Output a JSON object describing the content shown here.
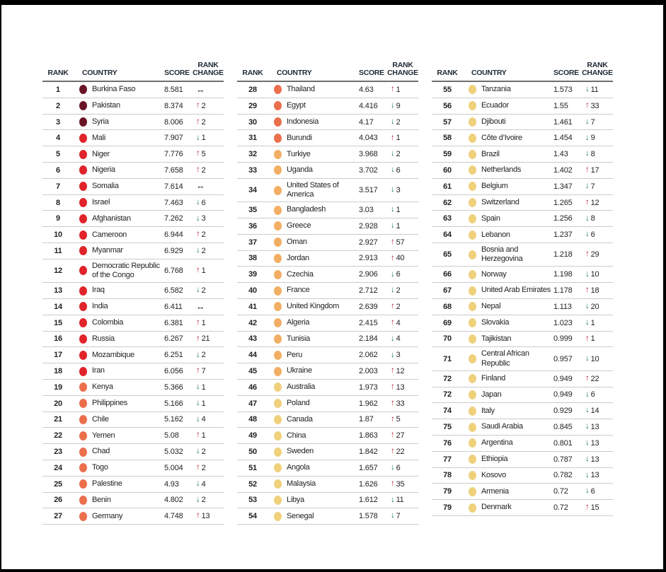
{
  "page": {
    "background": "#ffffff",
    "frame_border": "#000000"
  },
  "colors": {
    "bands": {
      "maroon": "#6b1426",
      "red": "#e1242a",
      "orange": "#ec6f4c",
      "amber": "#f2ae63",
      "yellow": "#efd17c"
    },
    "dirs": {
      "up": "#b8232e",
      "down": "#15786c",
      "same": "#141414"
    },
    "row_line": "#cbcbcb",
    "header_line": "#6e6e6e",
    "text": "#222222",
    "header_text": "#1e2a36"
  },
  "icons": {
    "up": "↑",
    "down": "↓",
    "same": "↔"
  },
  "table": {
    "headers": {
      "rank": "RANK",
      "country": "COUNTRY",
      "score": "SCORE",
      "change_line1": "RANK",
      "change_line2": "CHANGE"
    },
    "columns": [
      {
        "rows": [
          {
            "rank": "1",
            "country": "Burkina Faso",
            "score": "8.581",
            "dir": "same",
            "change": "",
            "band": "maroon"
          },
          {
            "rank": "2",
            "country": "Pakistan",
            "score": "8.374",
            "dir": "up",
            "change": "2",
            "band": "maroon"
          },
          {
            "rank": "3",
            "country": "Syria",
            "score": "8.006",
            "dir": "up",
            "change": "2",
            "band": "maroon"
          },
          {
            "rank": "4",
            "country": "Mali",
            "score": "7.907",
            "dir": "down",
            "change": "1",
            "band": "red"
          },
          {
            "rank": "5",
            "country": "Niger",
            "score": "7.776",
            "dir": "up",
            "change": "5",
            "band": "red"
          },
          {
            "rank": "6",
            "country": "Nigeria",
            "score": "7.658",
            "dir": "up",
            "change": "2",
            "band": "red"
          },
          {
            "rank": "7",
            "country": "Somalia",
            "score": "7.614",
            "dir": "same",
            "change": "",
            "band": "red"
          },
          {
            "rank": "8",
            "country": "Israel",
            "score": "7.463",
            "dir": "down",
            "change": "6",
            "band": "red"
          },
          {
            "rank": "9",
            "country": "Afghanistan",
            "score": "7.262",
            "dir": "down",
            "change": "3",
            "band": "red"
          },
          {
            "rank": "10",
            "country": "Cameroon",
            "score": "6.944",
            "dir": "up",
            "change": "2",
            "band": "red"
          },
          {
            "rank": "11",
            "country": "Myanmar",
            "score": "6.929",
            "dir": "down",
            "change": "2",
            "band": "red"
          },
          {
            "rank": "12",
            "country": "Democratic Republic of the Congo",
            "score": "6.768",
            "dir": "up",
            "change": "1",
            "band": "red"
          },
          {
            "rank": "13",
            "country": "Iraq",
            "score": "6.582",
            "dir": "down",
            "change": "2",
            "band": "red"
          },
          {
            "rank": "14",
            "country": "India",
            "score": "6.411",
            "dir": "same",
            "change": "",
            "band": "red"
          },
          {
            "rank": "15",
            "country": "Colombia",
            "score": "6.381",
            "dir": "up",
            "change": "1",
            "band": "red"
          },
          {
            "rank": "16",
            "country": "Russia",
            "score": "6.267",
            "dir": "up",
            "change": "21",
            "band": "red"
          },
          {
            "rank": "17",
            "country": "Mozambique",
            "score": "6.251",
            "dir": "down",
            "change": "2",
            "band": "red"
          },
          {
            "rank": "18",
            "country": "Iran",
            "score": "6.056",
            "dir": "up",
            "change": "7",
            "band": "red"
          },
          {
            "rank": "19",
            "country": "Kenya",
            "score": "5.366",
            "dir": "down",
            "change": "1",
            "band": "orange"
          },
          {
            "rank": "20",
            "country": "Philippines",
            "score": "5.166",
            "dir": "down",
            "change": "1",
            "band": "orange"
          },
          {
            "rank": "21",
            "country": "Chile",
            "score": "5.162",
            "dir": "down",
            "change": "4",
            "band": "orange"
          },
          {
            "rank": "22",
            "country": "Yemen",
            "score": "5.08",
            "dir": "up",
            "change": "1",
            "band": "orange"
          },
          {
            "rank": "23",
            "country": "Chad",
            "score": "5.032",
            "dir": "down",
            "change": "2",
            "band": "orange"
          },
          {
            "rank": "24",
            "country": "Togo",
            "score": "5.004",
            "dir": "up",
            "change": "2",
            "band": "orange"
          },
          {
            "rank": "25",
            "country": "Palestine",
            "score": "4.93",
            "dir": "down",
            "change": "4",
            "band": "orange"
          },
          {
            "rank": "26",
            "country": "Benin",
            "score": "4.802",
            "dir": "down",
            "change": "2",
            "band": "orange"
          },
          {
            "rank": "27",
            "country": "Germany",
            "score": "4.748",
            "dir": "up",
            "change": "13",
            "band": "orange"
          }
        ]
      },
      {
        "rows": [
          {
            "rank": "28",
            "country": "Thailand",
            "score": "4.63",
            "dir": "up",
            "change": "1",
            "band": "orange"
          },
          {
            "rank": "29",
            "country": "Egypt",
            "score": "4.416",
            "dir": "down",
            "change": "9",
            "band": "orange"
          },
          {
            "rank": "30",
            "country": "Indonesia",
            "score": "4.17",
            "dir": "down",
            "change": "2",
            "band": "orange"
          },
          {
            "rank": "31",
            "country": "Burundi",
            "score": "4.043",
            "dir": "up",
            "change": "1",
            "band": "orange"
          },
          {
            "rank": "32",
            "country": "Turkiye",
            "score": "3.968",
            "dir": "down",
            "change": "2",
            "band": "amber"
          },
          {
            "rank": "33",
            "country": "Uganda",
            "score": "3.702",
            "dir": "down",
            "change": "6",
            "band": "amber"
          },
          {
            "rank": "34",
            "country": "United States of America",
            "score": "3.517",
            "dir": "down",
            "change": "3",
            "band": "amber"
          },
          {
            "rank": "35",
            "country": "Bangladesh",
            "score": "3.03",
            "dir": "down",
            "change": "1",
            "band": "amber"
          },
          {
            "rank": "36",
            "country": "Greece",
            "score": "2.928",
            "dir": "down",
            "change": "1",
            "band": "amber"
          },
          {
            "rank": "37",
            "country": "Oman",
            "score": "2.927",
            "dir": "up",
            "change": "57",
            "band": "amber"
          },
          {
            "rank": "38",
            "country": "Jordan",
            "score": "2.913",
            "dir": "up",
            "change": "40",
            "band": "amber"
          },
          {
            "rank": "39",
            "country": "Czechia",
            "score": "2.906",
            "dir": "down",
            "change": "6",
            "band": "amber"
          },
          {
            "rank": "40",
            "country": "France",
            "score": "2.712",
            "dir": "down",
            "change": "2",
            "band": "amber"
          },
          {
            "rank": "41",
            "country": "United Kingdom",
            "score": "2.639",
            "dir": "up",
            "change": "2",
            "band": "amber"
          },
          {
            "rank": "42",
            "country": "Algeria",
            "score": "2.415",
            "dir": "up",
            "change": "4",
            "band": "amber"
          },
          {
            "rank": "43",
            "country": "Tunisia",
            "score": "2.184",
            "dir": "down",
            "change": "4",
            "band": "amber"
          },
          {
            "rank": "44",
            "country": "Peru",
            "score": "2.062",
            "dir": "down",
            "change": "3",
            "band": "amber"
          },
          {
            "rank": "45",
            "country": "Ukraine",
            "score": "2.003",
            "dir": "up",
            "change": "12",
            "band": "amber"
          },
          {
            "rank": "46",
            "country": "Australia",
            "score": "1.973",
            "dir": "up",
            "change": "13",
            "band": "yellow"
          },
          {
            "rank": "47",
            "country": "Poland",
            "score": "1.962",
            "dir": "up",
            "change": "33",
            "band": "yellow"
          },
          {
            "rank": "48",
            "country": "Canada",
            "score": "1.87",
            "dir": "up",
            "change": "5",
            "band": "yellow"
          },
          {
            "rank": "49",
            "country": "China",
            "score": "1.863",
            "dir": "up",
            "change": "27",
            "band": "yellow"
          },
          {
            "rank": "50",
            "country": "Sweden",
            "score": "1.842",
            "dir": "up",
            "change": "22",
            "band": "yellow"
          },
          {
            "rank": "51",
            "country": "Angola",
            "score": "1.657",
            "dir": "down",
            "change": "6",
            "band": "yellow"
          },
          {
            "rank": "52",
            "country": "Malaysia",
            "score": "1.626",
            "dir": "up",
            "change": "35",
            "band": "yellow"
          },
          {
            "rank": "53",
            "country": "Libya",
            "score": "1.612",
            "dir": "down",
            "change": "11",
            "band": "yellow"
          },
          {
            "rank": "54",
            "country": "Senegal",
            "score": "1.578",
            "dir": "down",
            "change": "7",
            "band": "yellow"
          }
        ]
      },
      {
        "rows": [
          {
            "rank": "55",
            "country": "Tanzania",
            "score": "1.573",
            "dir": "down",
            "change": "11",
            "band": "yellow"
          },
          {
            "rank": "56",
            "country": "Ecuador",
            "score": "1.55",
            "dir": "up",
            "change": "33",
            "band": "yellow"
          },
          {
            "rank": "57",
            "country": "Djibouti",
            "score": "1.461",
            "dir": "down",
            "change": "7",
            "band": "yellow"
          },
          {
            "rank": "58",
            "country": "Côte d’Ivoire",
            "score": "1.454",
            "dir": "down",
            "change": "9",
            "band": "yellow"
          },
          {
            "rank": "59",
            "country": "Brazil",
            "score": "1.43",
            "dir": "down",
            "change": "8",
            "band": "yellow"
          },
          {
            "rank": "60",
            "country": "Netherlands",
            "score": "1.402",
            "dir": "up",
            "change": "17",
            "band": "yellow"
          },
          {
            "rank": "61",
            "country": "Belgium",
            "score": "1.347",
            "dir": "down",
            "change": "7",
            "band": "yellow"
          },
          {
            "rank": "62",
            "country": "Switzerland",
            "score": "1.265",
            "dir": "up",
            "change": "12",
            "band": "yellow"
          },
          {
            "rank": "63",
            "country": "Spain",
            "score": "1.256",
            "dir": "down",
            "change": "8",
            "band": "yellow"
          },
          {
            "rank": "64",
            "country": "Lebanon",
            "score": "1.237",
            "dir": "down",
            "change": "6",
            "band": "yellow"
          },
          {
            "rank": "65",
            "country": "Bosnia and Herzegovina",
            "score": "1.218",
            "dir": "up",
            "change": "29",
            "band": "yellow"
          },
          {
            "rank": "66",
            "country": "Norway",
            "score": "1.198",
            "dir": "down",
            "change": "10",
            "band": "yellow"
          },
          {
            "rank": "67",
            "country": "United Arab Emirates",
            "score": "1.178",
            "dir": "up",
            "change": "18",
            "band": "yellow"
          },
          {
            "rank": "68",
            "country": "Nepal",
            "score": "1.113",
            "dir": "down",
            "change": "20",
            "band": "yellow"
          },
          {
            "rank": "69",
            "country": "Slovakia",
            "score": "1.023",
            "dir": "down",
            "change": "1",
            "band": "yellow"
          },
          {
            "rank": "70",
            "country": "Tajikistan",
            "score": "0.999",
            "dir": "up",
            "change": "1",
            "band": "yellow"
          },
          {
            "rank": "71",
            "country": "Central African Republic",
            "score": "0.957",
            "dir": "down",
            "change": "10",
            "band": "yellow"
          },
          {
            "rank": "72",
            "country": "Finland",
            "score": "0.949",
            "dir": "up",
            "change": "22",
            "band": "yellow"
          },
          {
            "rank": "72",
            "country": "Japan",
            "score": "0.949",
            "dir": "down",
            "change": "6",
            "band": "yellow"
          },
          {
            "rank": "74",
            "country": "Italy",
            "score": "0.929",
            "dir": "down",
            "change": "14",
            "band": "yellow"
          },
          {
            "rank": "75",
            "country": "Saudi Arabia",
            "score": "0.845",
            "dir": "down",
            "change": "13",
            "band": "yellow"
          },
          {
            "rank": "76",
            "country": "Argentina",
            "score": "0.801",
            "dir": "down",
            "change": "13",
            "band": "yellow"
          },
          {
            "rank": "77",
            "country": "Ethiopia",
            "score": "0.787",
            "dir": "down",
            "change": "13",
            "band": "yellow"
          },
          {
            "rank": "78",
            "country": "Kosovo",
            "score": "0.782",
            "dir": "down",
            "change": "13",
            "band": "yellow"
          },
          {
            "rank": "79",
            "country": "Armenia",
            "score": "0.72",
            "dir": "down",
            "change": "6",
            "band": "yellow"
          },
          {
            "rank": "79",
            "country": "Denmark",
            "score": "0.72",
            "dir": "up",
            "change": "15",
            "band": "yellow"
          }
        ]
      }
    ]
  }
}
